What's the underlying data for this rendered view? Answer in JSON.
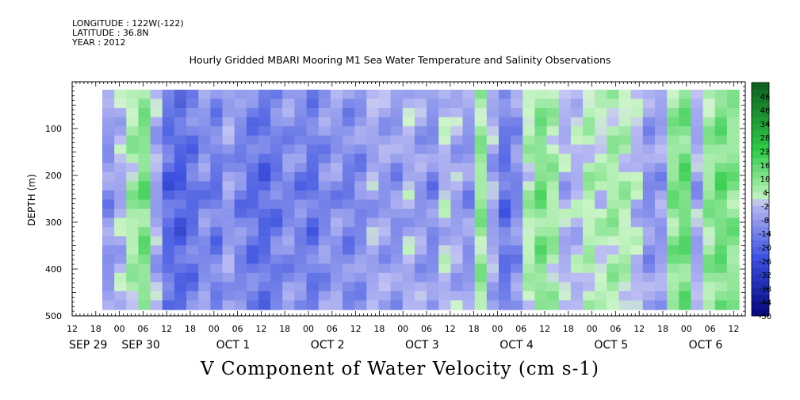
{
  "header": {
    "longitude": "LONGITUDE : 122W(-122)",
    "latitude": "LATITUDE : 36.8N",
    "year": "YEAR : 2012"
  },
  "title": "Hourly Gridded MBARI Mooring M1 Sea Water Temperature and Salinity Observations",
  "caption": "V Component of Water Velocity (cm s-1)",
  "colors": {
    "neg_dark": "#05057a",
    "neg_mid": "#3a50e0",
    "neg_light": "#b9baf2",
    "pos_light": "#c8f4c4",
    "pos_mid": "#2fcc4a",
    "pos_dark": "#0e5e1e"
  },
  "chart_data": {
    "type": "heatmap",
    "title": "Hourly Gridded MBARI Mooring M1 Sea Water Temperature and Salinity Observations",
    "xlabel": "",
    "ylabel": "DEPTH (m)",
    "caption": "V Component of Water Velocity (cm s-1)",
    "y_ticks": [
      100,
      200,
      300,
      400,
      500
    ],
    "y_tick_labels": [
      "100",
      "200",
      "300",
      "400",
      "500"
    ],
    "ylim": [
      500,
      0
    ],
    "x_hour_labels": [
      "12",
      "18",
      "00",
      "06",
      "12",
      "18",
      "00",
      "06",
      "12",
      "18",
      "00",
      "06",
      "12",
      "18",
      "00",
      "06",
      "12",
      "18",
      "00",
      "06",
      "12",
      "18",
      "00",
      "06",
      "12",
      "18",
      "00",
      "06",
      "12"
    ],
    "x_date_labels": [
      "SEP 29",
      "SEP 30",
      "OCT  1",
      "OCT  2",
      "OCT  3",
      "OCT  4",
      "OCT  5",
      "OCT  6"
    ],
    "colorbar_labels": [
      "46",
      "40",
      "34",
      "28",
      "22",
      "16",
      "10",
      "4",
      "-2",
      "-8",
      "-14",
      "-20",
      "-26",
      "-32",
      "-38",
      "-44",
      "-50"
    ],
    "colorbar_range": [
      -50,
      52
    ],
    "colorbar_step": 3,
    "depth_profile_columns": [
      {
        "time": "SEP 29 21",
        "v": -10
      },
      {
        "time": "SEP 30 00",
        "v": -4
      },
      {
        "time": "SEP 30 03",
        "v": 6
      },
      {
        "time": "SEP 30 06",
        "v": 12
      },
      {
        "time": "SEP 30 09",
        "v": -6
      },
      {
        "time": "SEP 30 12",
        "v": -20
      },
      {
        "time": "SEP 30 15",
        "v": -22
      },
      {
        "time": "SEP 30 18",
        "v": -18
      },
      {
        "time": "SEP 30 21",
        "v": -12
      },
      {
        "time": "OCT 1 00",
        "v": -16
      },
      {
        "time": "OCT 1 03",
        "v": -8
      },
      {
        "time": "OCT 1 06",
        "v": -14
      },
      {
        "time": "OCT 1 09",
        "v": -18
      },
      {
        "time": "OCT 1 12",
        "v": -20
      },
      {
        "time": "OCT 1 15",
        "v": -16
      },
      {
        "time": "OCT 1 18",
        "v": -12
      },
      {
        "time": "OCT 1 21",
        "v": -14
      },
      {
        "time": "OCT 2 00",
        "v": -18
      },
      {
        "time": "OCT 2 03",
        "v": -12
      },
      {
        "time": "OCT 2 06",
        "v": -10
      },
      {
        "time": "OCT 2 09",
        "v": -14
      },
      {
        "time": "OCT 2 12",
        "v": -12
      },
      {
        "time": "OCT 2 15",
        "v": -6
      },
      {
        "time": "OCT 2 18",
        "v": -8
      },
      {
        "time": "OCT 2 21",
        "v": -10
      },
      {
        "time": "OCT 3 00",
        "v": -4
      },
      {
        "time": "OCT 3 03",
        "v": -8
      },
      {
        "time": "OCT 3 06",
        "v": -12
      },
      {
        "time": "OCT 3 09",
        "v": -2
      },
      {
        "time": "OCT 3 12",
        "v": -6
      },
      {
        "time": "OCT 3 15",
        "v": -10
      },
      {
        "time": "OCT 3 18",
        "v": 8
      },
      {
        "time": "OCT 3 21",
        "v": -6
      },
      {
        "time": "OCT 4 00",
        "v": -18
      },
      {
        "time": "OCT 4 03",
        "v": -12
      },
      {
        "time": "OCT 4 06",
        "v": 4
      },
      {
        "time": "OCT 4 09",
        "v": 12
      },
      {
        "time": "OCT 4 12",
        "v": 6
      },
      {
        "time": "OCT 4 15",
        "v": -4
      },
      {
        "time": "OCT 4 18",
        "v": -2
      },
      {
        "time": "OCT 4 21",
        "v": 4
      },
      {
        "time": "OCT 5 00",
        "v": 2
      },
      {
        "time": "OCT 5 03",
        "v": 6
      },
      {
        "time": "OCT 5 06",
        "v": 4
      },
      {
        "time": "OCT 5 09",
        "v": -2
      },
      {
        "time": "OCT 5 12",
        "v": -10
      },
      {
        "time": "OCT 5 15",
        "v": -8
      },
      {
        "time": "OCT 5 18",
        "v": 10
      },
      {
        "time": "OCT 5 21",
        "v": 14
      },
      {
        "time": "OCT 6 00",
        "v": -6
      },
      {
        "time": "OCT 6 03",
        "v": 8
      },
      {
        "time": "OCT 6 06",
        "v": 14
      },
      {
        "time": "OCT 6 09",
        "v": 10
      }
    ]
  }
}
